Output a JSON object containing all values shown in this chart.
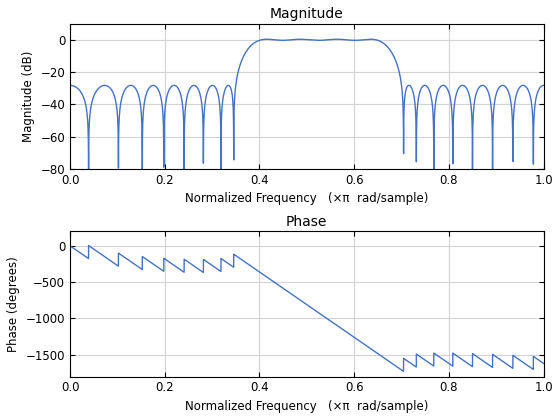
{
  "line_color": "#4472C4",
  "line_width": 1.0,
  "mag_title": "Magnitude",
  "phase_title": "Phase",
  "mag_ylabel": "Magnitude (dB)",
  "phase_ylabel": "Phase (degrees)",
  "xlabel": "Normalized Frequency   (×π  rad/sample)",
  "mag_ylim": [
    -80,
    10
  ],
  "phase_ylim": [
    -1800,
    200
  ],
  "xlim": [
    0,
    1
  ],
  "mag_yticks": [
    0,
    -20,
    -40,
    -60,
    -80
  ],
  "phase_yticks": [
    0,
    -500,
    -1000,
    -1500
  ],
  "xticks": [
    0,
    0.2,
    0.4,
    0.6,
    0.8,
    1.0
  ],
  "grid_color": "#d3d3d3",
  "background_color": "#ffffff",
  "fig_background": "#ffffff",
  "title_fontsize": 10,
  "label_fontsize": 8.5,
  "tick_fontsize": 8.5,
  "numtaps": 51,
  "bands": [
    0,
    0.35,
    0.4,
    0.65,
    0.7,
    1.0
  ],
  "desired": [
    0,
    1,
    0
  ]
}
